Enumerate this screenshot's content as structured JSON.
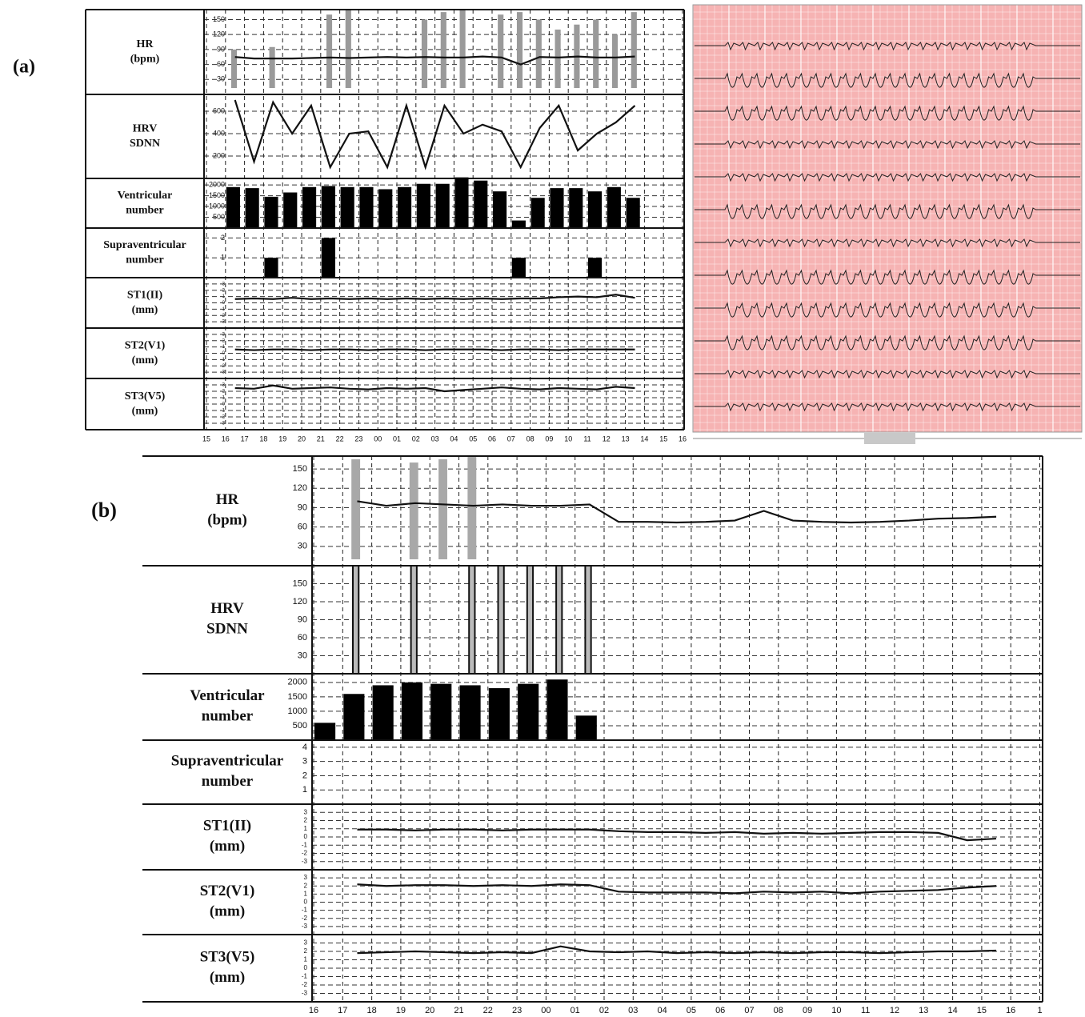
{
  "chart_data": [
    {
      "type": "trend",
      "panel_label": "(a)",
      "categories": [
        "15",
        "16",
        "17",
        "18",
        "19",
        "20",
        "21",
        "22",
        "23",
        "00",
        "01",
        "02",
        "03",
        "04",
        "05",
        "06",
        "07",
        "08",
        "09",
        "10",
        "11",
        "12",
        "13",
        "14",
        "15",
        "16"
      ],
      "rows": [
        {
          "label": [
            "HR",
            "(bpm)"
          ],
          "ylim": [
            0,
            170
          ],
          "yticks": [
            30,
            60,
            90,
            120,
            150
          ],
          "series": [
            {
              "kind": "spike",
              "color": "#9a9a9a",
              "values": [
                null,
                90,
                null,
                95,
                null,
                null,
                160,
                170,
                null,
                null,
                null,
                150,
                165,
                170,
                null,
                160,
                165,
                150,
                130,
                140,
                150,
                120,
                165,
                null,
                null,
                null
              ]
            },
            {
              "kind": "line",
              "color": "#111111",
              "values": [
                null,
                75,
                72,
                72,
                72,
                73,
                74,
                73,
                74,
                75,
                74,
                75,
                74,
                74,
                76,
                74,
                60,
                75,
                74,
                76,
                74,
                74,
                76,
                null,
                null,
                null
              ]
            }
          ]
        },
        {
          "label": [
            "HRV",
            "SDNN"
          ],
          "ylim": [
            0,
            750
          ],
          "yticks": [
            200,
            400,
            600
          ],
          "series": [
            {
              "kind": "line",
              "color": "#111111",
              "values": [
                null,
                700,
                150,
                680,
                400,
                650,
                100,
                400,
                420,
                100,
                650,
                100,
                650,
                400,
                480,
                420,
                100,
                450,
                650,
                250,
                400,
                500,
                650,
                null,
                null,
                null
              ]
            }
          ]
        },
        {
          "label": [
            "Ventricular",
            "number"
          ],
          "ylim": [
            0,
            2300
          ],
          "yticks": [
            500,
            1000,
            1500,
            2000
          ],
          "series": [
            {
              "kind": "bar",
              "color": "#000000",
              "values": [
                null,
                1900,
                1850,
                1450,
                1650,
                1900,
                1950,
                1900,
                1900,
                1800,
                1900,
                2050,
                2050,
                2350,
                2200,
                1700,
                350,
                1400,
                1850,
                1850,
                1700,
                1900,
                1400,
                null,
                null,
                null
              ]
            }
          ]
        },
        {
          "label": [
            "Supraventricular",
            "number"
          ],
          "ylim": [
            0,
            2.5
          ],
          "yticks": [
            1,
            2
          ],
          "series": [
            {
              "kind": "bar",
              "color": "#000000",
              "values": [
                null,
                null,
                null,
                1,
                null,
                null,
                2,
                null,
                null,
                null,
                null,
                null,
                null,
                null,
                null,
                null,
                1,
                null,
                null,
                null,
                1,
                null,
                null,
                null,
                null,
                null
              ]
            }
          ]
        },
        {
          "label": [
            "ST1(II)",
            "(mm)"
          ],
          "ylim": [
            -4,
            4
          ],
          "yticks": [
            -3,
            -2,
            -1,
            0,
            1,
            2,
            3
          ],
          "series": [
            {
              "kind": "line",
              "color": "#111111",
              "values": [
                null,
                0.6,
                0.7,
                0.6,
                0.8,
                0.6,
                0.7,
                0.6,
                0.7,
                0.6,
                0.7,
                0.6,
                0.7,
                0.6,
                0.7,
                0.6,
                0.7,
                0.7,
                0.9,
                1.0,
                0.9,
                1.3,
                0.8,
                null,
                null,
                null
              ]
            }
          ]
        },
        {
          "label": [
            "ST2(V1)",
            "(mm)"
          ],
          "ylim": [
            -4,
            4
          ],
          "yticks": [
            -3,
            -2,
            -1,
            0,
            1,
            2,
            3
          ],
          "series": [
            {
              "kind": "line",
              "color": "#111111",
              "values": [
                null,
                0.6,
                0.5,
                0.6,
                0.6,
                0.5,
                0.6,
                0.6,
                0.5,
                0.6,
                0.6,
                0.5,
                0.6,
                0.6,
                0.6,
                0.5,
                0.6,
                0.6,
                0.5,
                0.6,
                0.6,
                0.6,
                0.6,
                null,
                null,
                null
              ]
            }
          ]
        },
        {
          "label": [
            "ST3(V5)",
            "(mm)"
          ],
          "ylim": [
            -4,
            4
          ],
          "yticks": [
            -3,
            -2,
            -1,
            0,
            1,
            2,
            3
          ],
          "series": [
            {
              "kind": "line",
              "color": "#111111",
              "values": [
                null,
                2.5,
                2.4,
                2.9,
                2.4,
                2.5,
                2.6,
                2.4,
                2.3,
                2.5,
                2.4,
                2.5,
                2.0,
                2.2,
                2.4,
                2.6,
                2.4,
                2.3,
                2.5,
                2.4,
                2.3,
                2.7,
                2.5,
                null,
                null,
                null
              ]
            }
          ]
        }
      ]
    },
    {
      "type": "trend",
      "panel_label": "(b)",
      "categories": [
        "16",
        "17",
        "18",
        "19",
        "20",
        "21",
        "22",
        "23",
        "00",
        "01",
        "02",
        "03",
        "04",
        "05",
        "06",
        "07",
        "08",
        "09",
        "10",
        "11",
        "12",
        "13",
        "14",
        "15",
        "16",
        "1"
      ],
      "rows": [
        {
          "label": [
            "HR",
            "(bpm)"
          ],
          "ylim": [
            0,
            170
          ],
          "yticks": [
            30,
            60,
            90,
            120,
            150
          ],
          "series": [
            {
              "kind": "spike",
              "color": "#a8a8a8",
              "values": [
                null,
                165,
                null,
                160,
                165,
                170,
                null,
                null,
                null,
                null,
                null,
                null,
                null,
                null,
                null,
                null,
                null,
                null,
                null,
                null,
                null,
                null,
                null,
                null,
                null,
                null
              ]
            },
            {
              "kind": "line",
              "color": "#111111",
              "values": [
                null,
                100,
                93,
                97,
                95,
                93,
                95,
                93,
                93,
                95,
                68,
                68,
                67,
                68,
                70,
                85,
                70,
                68,
                67,
                68,
                70,
                73,
                74,
                76,
                null,
                null
              ]
            }
          ]
        },
        {
          "label": [
            "HRV",
            "SDNN"
          ],
          "ylim": [
            0,
            180
          ],
          "yticks": [
            30,
            60,
            90,
            120,
            150
          ],
          "series": [
            {
              "kind": "outline",
              "color": "#111111",
              "values": [
                null,
                180,
                null,
                180,
                null,
                180,
                180,
                180,
                180,
                180,
                null,
                null,
                null,
                null,
                null,
                null,
                null,
                null,
                null,
                null,
                null,
                null,
                null,
                null,
                null,
                null
              ]
            }
          ]
        },
        {
          "label": [
            "Ventricular",
            "number"
          ],
          "ylim": [
            0,
            2300
          ],
          "yticks": [
            500,
            1000,
            1500,
            2000
          ],
          "series": [
            {
              "kind": "bar",
              "color": "#000000",
              "values": [
                600,
                1600,
                1900,
                2000,
                1950,
                1900,
                1800,
                1950,
                2100,
                850,
                null,
                null,
                null,
                null,
                null,
                null,
                null,
                null,
                null,
                null,
                null,
                null,
                null,
                null,
                null,
                null
              ]
            }
          ]
        },
        {
          "label": [
            "Supraventricular",
            "number"
          ],
          "ylim": [
            0,
            4.5
          ],
          "yticks": [
            1,
            2,
            3,
            4
          ],
          "series": []
        },
        {
          "label": [
            "ST1(II)",
            "(mm)"
          ],
          "ylim": [
            -4,
            4
          ],
          "yticks": [
            -3,
            -2,
            -1,
            0,
            1,
            2,
            3
          ],
          "series": [
            {
              "kind": "line",
              "color": "#111111",
              "values": [
                null,
                0.9,
                0.9,
                0.8,
                0.9,
                0.9,
                0.8,
                0.9,
                0.9,
                0.9,
                0.7,
                0.6,
                0.6,
                0.5,
                0.6,
                0.4,
                0.5,
                0.4,
                0.5,
                0.6,
                0.6,
                0.5,
                -0.4,
                -0.2,
                null,
                null
              ]
            }
          ]
        },
        {
          "label": [
            "ST2(V1)",
            "(mm)"
          ],
          "ylim": [
            -4,
            4
          ],
          "yticks": [
            -3,
            -2,
            -1,
            0,
            1,
            2,
            3
          ],
          "series": [
            {
              "kind": "line",
              "color": "#111111",
              "values": [
                null,
                2.2,
                2.0,
                2.1,
                2.1,
                2.0,
                2.1,
                2.0,
                2.2,
                2.1,
                1.3,
                1.2,
                1.2,
                1.2,
                1.1,
                1.3,
                1.2,
                1.3,
                1.1,
                1.3,
                1.4,
                1.5,
                1.8,
                2.0,
                null,
                null
              ]
            }
          ]
        },
        {
          "label": [
            "ST3(V5)",
            "(mm)"
          ],
          "ylim": [
            -4,
            4
          ],
          "yticks": [
            -3,
            -2,
            -1,
            0,
            1,
            2,
            3
          ],
          "series": [
            {
              "kind": "line",
              "color": "#111111",
              "values": [
                null,
                1.8,
                1.9,
                2.0,
                1.9,
                1.8,
                1.9,
                1.8,
                2.6,
                2.0,
                1.9,
                2.0,
                1.8,
                1.9,
                1.8,
                1.9,
                1.8,
                1.9,
                1.9,
                1.8,
                1.9,
                2.0,
                2.0,
                2.1,
                null,
                null
              ]
            }
          ]
        }
      ]
    }
  ]
}
